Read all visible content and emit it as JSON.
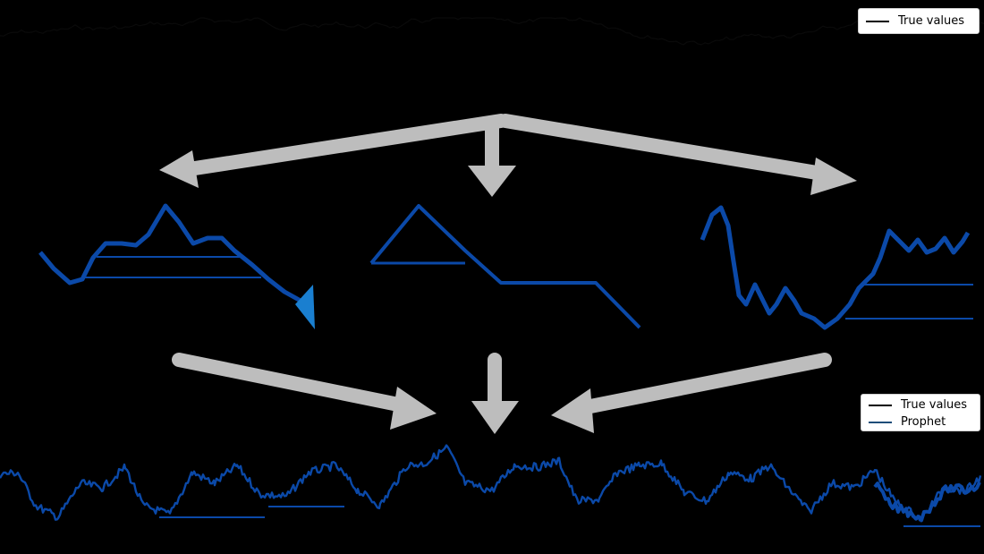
{
  "legend_top": {
    "entries": [
      {
        "label": "True values",
        "color": "#000000"
      }
    ]
  },
  "legend_bottom": {
    "entries": [
      {
        "label": "True values",
        "color": "#000000"
      },
      {
        "label": "Prophet",
        "color": "#1f4e79"
      }
    ]
  },
  "colors": {
    "background": "#000000",
    "series": "#0b49a8",
    "series_light": "#1a7fd0",
    "arrow": "#bdbdbd",
    "legend_bg": "#ffffff"
  },
  "components": [
    {
      "name": "trend-component"
    },
    {
      "name": "seasonality-component"
    },
    {
      "name": "residual-component"
    }
  ],
  "icons": {
    "arrow": "arrow-icon"
  }
}
